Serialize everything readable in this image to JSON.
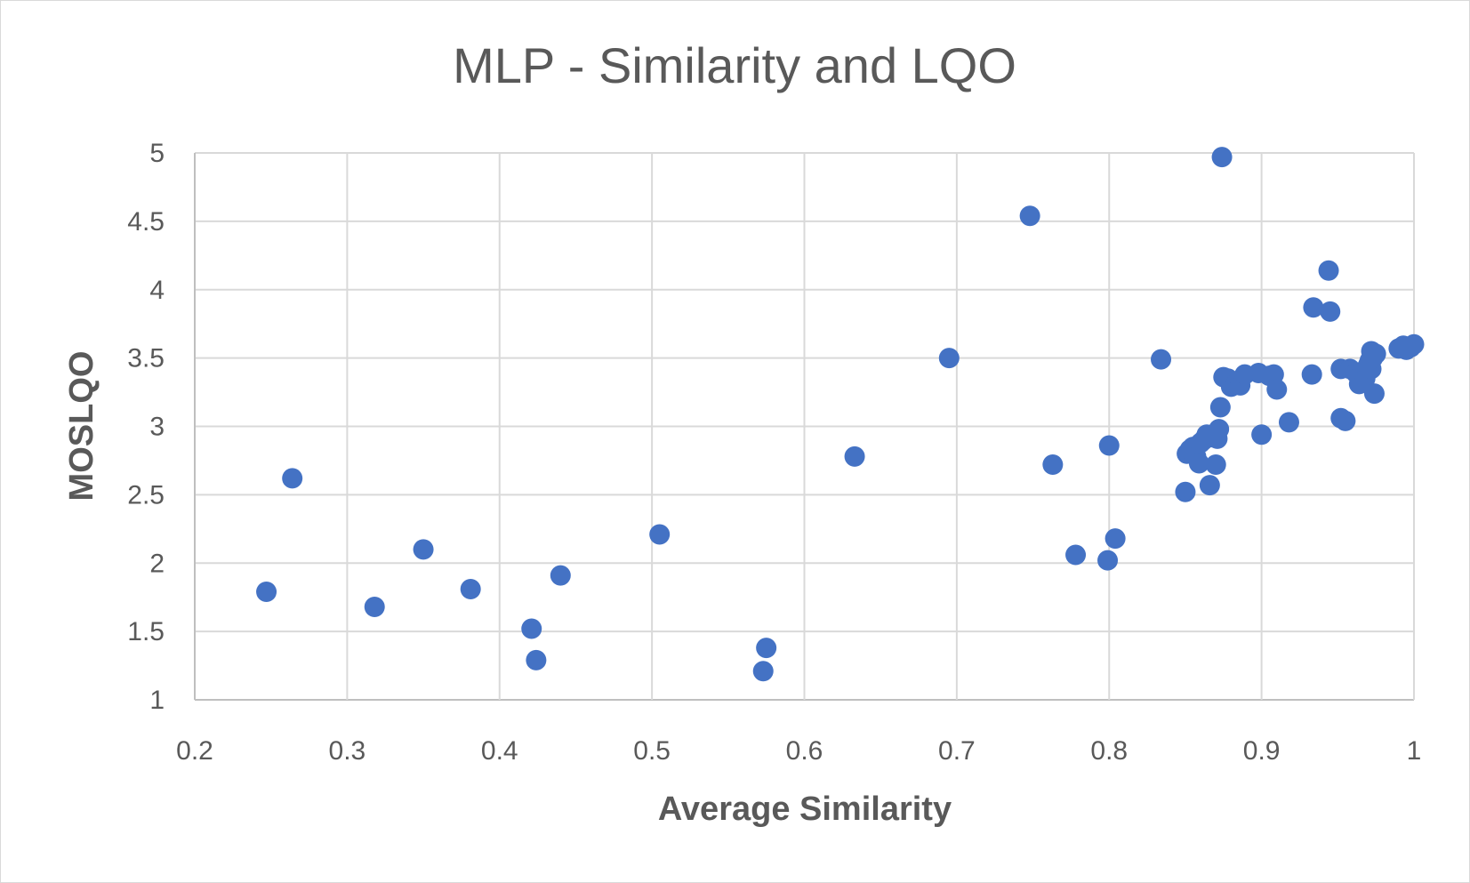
{
  "chart_data": {
    "type": "scatter",
    "title": "MLP - Similarity and LQO",
    "xlabel": "Average Similarity",
    "ylabel": "MOSLQO",
    "xlim": [
      0.2,
      1.0
    ],
    "ylim": [
      1,
      5
    ],
    "x_ticks": [
      0.2,
      0.3,
      0.4,
      0.5,
      0.6,
      0.7,
      0.8,
      0.9,
      1.0
    ],
    "x_tick_labels": [
      "0.2",
      "0.3",
      "0.4",
      "0.5",
      "0.6",
      "0.7",
      "0.8",
      "0.9",
      "1"
    ],
    "y_ticks": [
      1,
      1.5,
      2,
      2.5,
      3,
      3.5,
      4,
      4.5,
      5
    ],
    "y_tick_labels": [
      "1",
      "1.5",
      "2",
      "2.5",
      "3",
      "3.5",
      "4",
      "4.5",
      "5"
    ],
    "grid": true,
    "legend": "none",
    "marker_color": "#4472C4",
    "points": [
      [
        0.247,
        1.79
      ],
      [
        0.264,
        2.62
      ],
      [
        0.318,
        1.68
      ],
      [
        0.35,
        2.1
      ],
      [
        0.381,
        1.81
      ],
      [
        0.421,
        1.52
      ],
      [
        0.424,
        1.29
      ],
      [
        0.44,
        1.91
      ],
      [
        0.505,
        2.21
      ],
      [
        0.573,
        1.21
      ],
      [
        0.575,
        1.38
      ],
      [
        0.633,
        2.78
      ],
      [
        0.695,
        3.5
      ],
      [
        0.748,
        4.54
      ],
      [
        0.763,
        2.72
      ],
      [
        0.778,
        2.06
      ],
      [
        0.799,
        2.02
      ],
      [
        0.8,
        2.86
      ],
      [
        0.804,
        2.18
      ],
      [
        0.834,
        3.49
      ],
      [
        0.85,
        2.52
      ],
      [
        0.851,
        2.8
      ],
      [
        0.853,
        2.83
      ],
      [
        0.855,
        2.85
      ],
      [
        0.857,
        2.78
      ],
      [
        0.859,
        2.73
      ],
      [
        0.86,
        2.88
      ],
      [
        0.862,
        2.9
      ],
      [
        0.864,
        2.94
      ],
      [
        0.866,
        2.57
      ],
      [
        0.868,
        2.92
      ],
      [
        0.87,
        2.95
      ],
      [
        0.87,
        2.72
      ],
      [
        0.871,
        2.91
      ],
      [
        0.872,
        2.98
      ],
      [
        0.873,
        3.14
      ],
      [
        0.874,
        4.97
      ],
      [
        0.875,
        3.36
      ],
      [
        0.878,
        3.35
      ],
      [
        0.88,
        3.29
      ],
      [
        0.883,
        3.31
      ],
      [
        0.886,
        3.3
      ],
      [
        0.889,
        3.38
      ],
      [
        0.898,
        3.39
      ],
      [
        0.9,
        2.94
      ],
      [
        0.905,
        3.37
      ],
      [
        0.908,
        3.38
      ],
      [
        0.91,
        3.27
      ],
      [
        0.918,
        3.03
      ],
      [
        0.933,
        3.38
      ],
      [
        0.934,
        3.87
      ],
      [
        0.944,
        4.14
      ],
      [
        0.945,
        3.84
      ],
      [
        0.952,
        3.06
      ],
      [
        0.952,
        3.42
      ],
      [
        0.955,
        3.04
      ],
      [
        0.958,
        3.42
      ],
      [
        0.962,
        3.39
      ],
      [
        0.964,
        3.31
      ],
      [
        0.966,
        3.4
      ],
      [
        0.968,
        3.35
      ],
      [
        0.97,
        3.45
      ],
      [
        0.971,
        3.48
      ],
      [
        0.972,
        3.55
      ],
      [
        0.972,
        3.42
      ],
      [
        0.973,
        3.5
      ],
      [
        0.974,
        3.24
      ],
      [
        0.975,
        3.53
      ],
      [
        0.99,
        3.57
      ],
      [
        0.993,
        3.59
      ],
      [
        0.995,
        3.56
      ],
      [
        0.998,
        3.58
      ],
      [
        1.0,
        3.6
      ]
    ]
  }
}
